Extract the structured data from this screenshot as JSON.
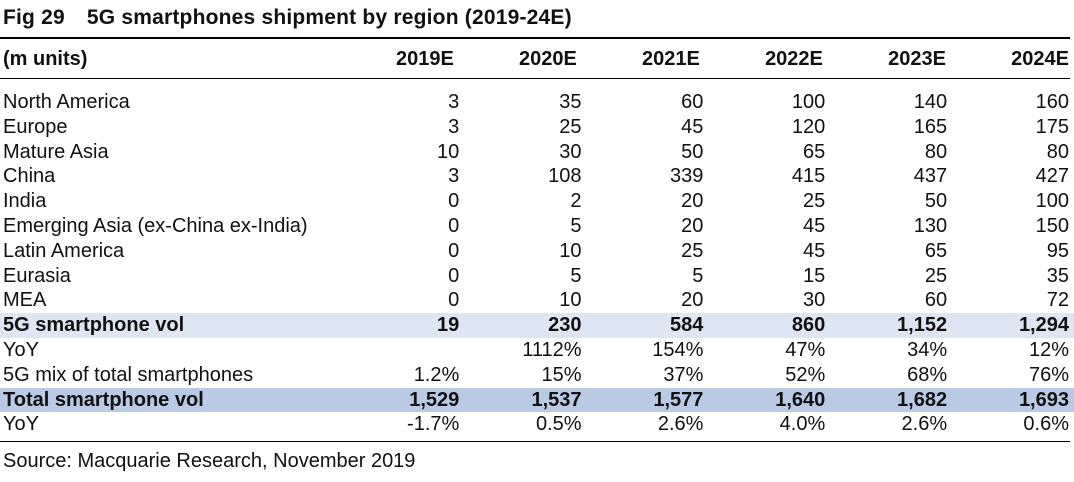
{
  "title": {
    "fig": "Fig 29",
    "text": "5G smartphones shipment by region (2019-24E)"
  },
  "header": {
    "unit": "(m units)",
    "years": [
      "2019E",
      "2020E",
      "2021E",
      "2022E",
      "2023E",
      "2024E"
    ]
  },
  "rows": [
    {
      "label": "North America",
      "values": [
        "3",
        "35",
        "60",
        "100",
        "140",
        "160"
      ],
      "style": ""
    },
    {
      "label": "Europe",
      "values": [
        "3",
        "25",
        "45",
        "120",
        "165",
        "175"
      ],
      "style": ""
    },
    {
      "label": "Mature Asia",
      "values": [
        "10",
        "30",
        "50",
        "65",
        "80",
        "80"
      ],
      "style": ""
    },
    {
      "label": "China",
      "values": [
        "3",
        "108",
        "339",
        "415",
        "437",
        "427"
      ],
      "style": ""
    },
    {
      "label": "India",
      "values": [
        "0",
        "2",
        "20",
        "25",
        "50",
        "100"
      ],
      "style": ""
    },
    {
      "label": "Emerging Asia (ex-China ex-India)",
      "values": [
        "0",
        "5",
        "20",
        "45",
        "130",
        "150"
      ],
      "style": ""
    },
    {
      "label": "Latin America",
      "values": [
        "0",
        "10",
        "25",
        "45",
        "65",
        "95"
      ],
      "style": ""
    },
    {
      "label": "Eurasia",
      "values": [
        "0",
        "5",
        "5",
        "15",
        "25",
        "35"
      ],
      "style": ""
    },
    {
      "label": "MEA",
      "values": [
        "0",
        "10",
        "20",
        "30",
        "60",
        "72"
      ],
      "style": ""
    },
    {
      "label": "5G smartphone vol",
      "values": [
        "19",
        "230",
        "584",
        "860",
        "1,152",
        "1,294"
      ],
      "style": "hl1"
    },
    {
      "label": "YoY",
      "values": [
        "",
        "1112%",
        "154%",
        "47%",
        "34%",
        "12%"
      ],
      "style": ""
    },
    {
      "label": "5G mix of total smartphones",
      "values": [
        "1.2%",
        "15%",
        "37%",
        "52%",
        "68%",
        "76%"
      ],
      "style": ""
    },
    {
      "label": "Total smartphone vol",
      "values": [
        "1,529",
        "1,537",
        "1,577",
        "1,640",
        "1,682",
        "1,693"
      ],
      "style": "hl2"
    },
    {
      "label": "YoY",
      "values": [
        "-1.7%",
        "0.5%",
        "2.6%",
        "4.0%",
        "2.6%",
        "0.6%"
      ],
      "style": ""
    }
  ],
  "source": "Source: Macquarie Research, November 2019"
}
